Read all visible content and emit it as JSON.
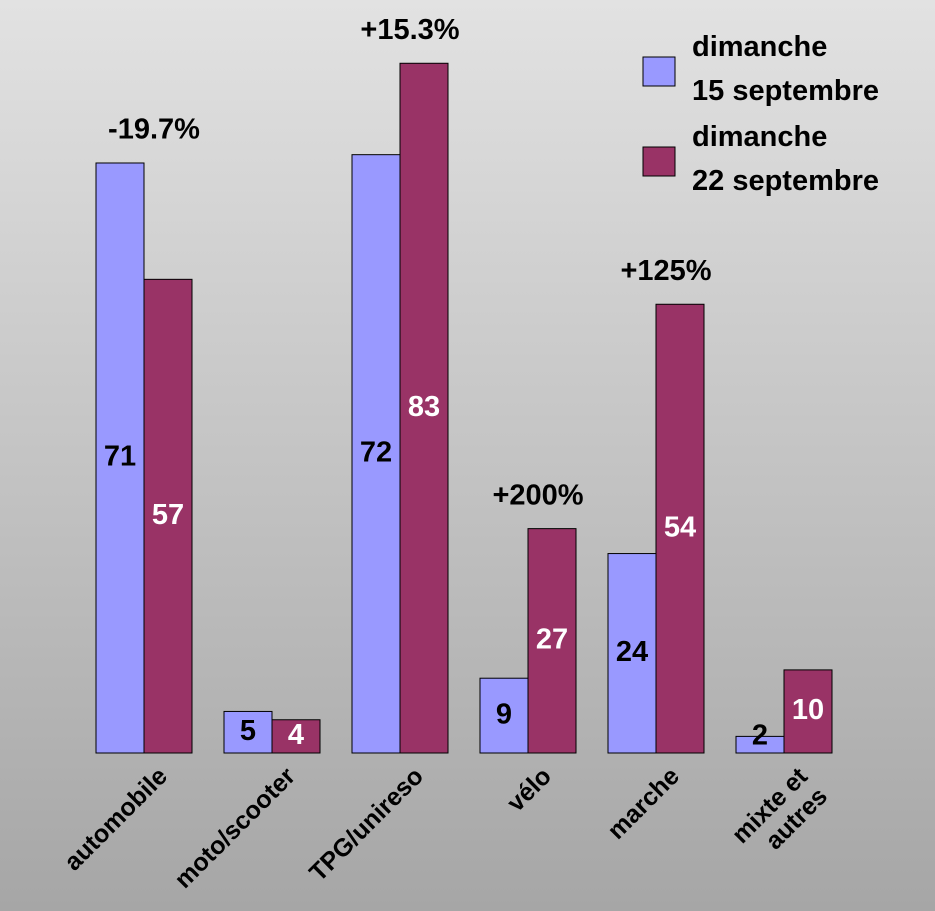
{
  "chart_data": {
    "type": "bar",
    "categories": [
      "automobile",
      "moto/scooter",
      "TPG/unireso",
      "vélo",
      "marche",
      "mixte et\nautres"
    ],
    "series": [
      {
        "name": "dimanche\n15 septembre",
        "color": "#9999ff",
        "values": [
          71,
          5,
          72,
          9,
          24,
          2
        ]
      },
      {
        "name": "dimanche\n22 septembre",
        "color": "#993366",
        "values": [
          57,
          4,
          83,
          27,
          54,
          10
        ]
      }
    ],
    "annotations": [
      "-19.7%",
      null,
      "+15.3%",
      "+200%",
      "+125%",
      null
    ],
    "ylim": [
      0,
      90
    ],
    "legend": "top-right"
  }
}
